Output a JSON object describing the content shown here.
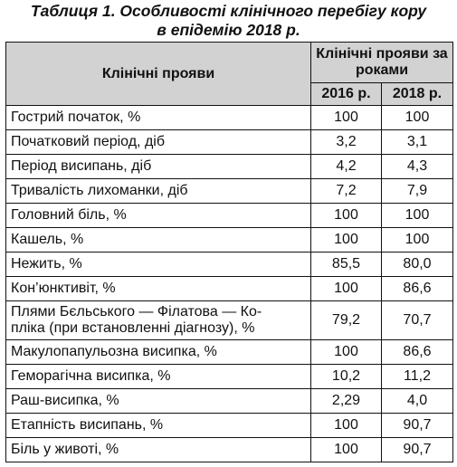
{
  "caption": {
    "line1": "Таблиця 1.  Особливості клінічного перебігу кору",
    "line2": "в епідемію 2018 р."
  },
  "table": {
    "header_col1": "Клінічні прояви",
    "header_group": "Клінічні прояви за роками",
    "years": [
      "2016 р.",
      "2018 р."
    ],
    "rows": [
      {
        "name": "Гострий початок, %",
        "v2016": "100",
        "v2018": "100"
      },
      {
        "name": "Початковий період, діб",
        "v2016": "3,2",
        "v2018": "3,1"
      },
      {
        "name": "Період висипань, діб",
        "v2016": "4,2",
        "v2018": "4,3"
      },
      {
        "name": "Тривалість лихоманки, діб",
        "v2016": "7,2",
        "v2018": "7,9"
      },
      {
        "name": "Головний біль, %",
        "v2016": "100",
        "v2018": "100"
      },
      {
        "name": "Кашель, %",
        "v2016": "100",
        "v2018": "100"
      },
      {
        "name": "Нежить, %",
        "v2016": "85,5",
        "v2018": "80,0"
      },
      {
        "name": "Кон’юнктивіт, %",
        "v2016": "100",
        "v2018": "86,6"
      },
      {
        "name_line1": "Плями Бєльського — Філатова — Ко-",
        "name_line2": "пліка (при встановленні діагнозу), %",
        "v2016": "79,2",
        "v2018": "70,7"
      },
      {
        "name": "Макулопапульозна висипка, %",
        "v2016": "100",
        "v2018": "86,6"
      },
      {
        "name": "Геморагічна висипка, %",
        "v2016": "10,2",
        "v2018": "11,2"
      },
      {
        "name": "Раш-висипка, %",
        "v2016": "2,29",
        "v2018": "4,0"
      },
      {
        "name": "Етапність висипань, %",
        "v2016": "100",
        "v2018": "90,7"
      },
      {
        "name": "Біль у животі, %",
        "v2016": "100",
        "v2018": "90,7"
      }
    ]
  }
}
